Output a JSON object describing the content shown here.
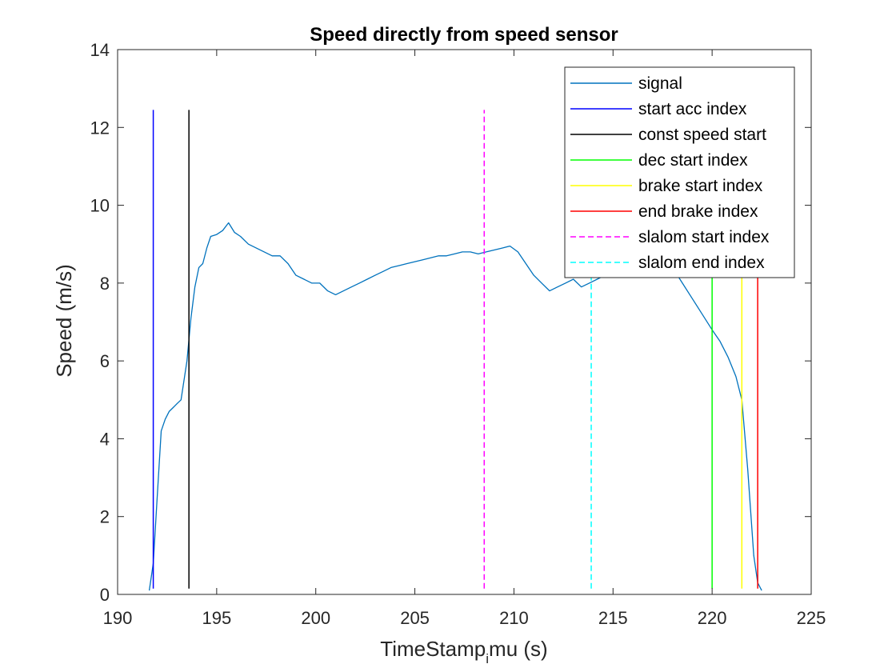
{
  "chart_data": {
    "type": "line",
    "title": "Speed directly from speed sensor",
    "xlabel_main": "TimeStamp",
    "xlabel_sub": "i",
    "xlabel_rest": "mu (s)",
    "ylabel": "Speed (m/s)",
    "xlim": [
      190,
      225
    ],
    "ylim": [
      0,
      14
    ],
    "xticks": [
      190,
      195,
      200,
      205,
      210,
      215,
      220,
      225
    ],
    "yticks": [
      0,
      2,
      4,
      6,
      8,
      10,
      12,
      14
    ],
    "grid": false,
    "legend_position": "top-right",
    "signal": {
      "name": "signal",
      "color": "#0072BD",
      "x": [
        191.6,
        191.8,
        192.0,
        192.2,
        192.4,
        192.6,
        192.8,
        193.0,
        193.2,
        193.5,
        193.7,
        193.9,
        194.1,
        194.3,
        194.5,
        194.7,
        195.0,
        195.3,
        195.6,
        195.9,
        196.2,
        196.6,
        197.0,
        197.4,
        197.8,
        198.2,
        198.6,
        199.0,
        199.4,
        199.8,
        200.2,
        200.6,
        201.0,
        201.4,
        201.8,
        202.2,
        202.6,
        203.0,
        203.4,
        203.8,
        204.2,
        204.6,
        205.0,
        205.4,
        205.8,
        206.2,
        206.6,
        207.0,
        207.4,
        207.8,
        208.2,
        208.6,
        209.0,
        209.4,
        209.8,
        210.2,
        210.6,
        211.0,
        211.4,
        211.8,
        212.2,
        212.6,
        213.0,
        213.4,
        213.8,
        214.2,
        214.6,
        215.0,
        215.5,
        216.0,
        216.5,
        217.0,
        217.5,
        218.0,
        218.5,
        219.0,
        219.5,
        220.0,
        220.4,
        220.8,
        221.2,
        221.5,
        221.8,
        222.1,
        222.3,
        222.5
      ],
      "y": [
        0.1,
        0.8,
        2.5,
        4.2,
        4.5,
        4.7,
        4.8,
        4.9,
        5.0,
        6.0,
        7.1,
        7.9,
        8.4,
        8.5,
        8.9,
        9.2,
        9.25,
        9.35,
        9.55,
        9.3,
        9.2,
        9.0,
        8.9,
        8.8,
        8.7,
        8.7,
        8.5,
        8.2,
        8.1,
        8.0,
        8.0,
        7.8,
        7.7,
        7.8,
        7.9,
        8.0,
        8.1,
        8.2,
        8.3,
        8.4,
        8.45,
        8.5,
        8.55,
        8.6,
        8.65,
        8.7,
        8.7,
        8.75,
        8.8,
        8.8,
        8.75,
        8.8,
        8.85,
        8.9,
        8.95,
        8.8,
        8.5,
        8.2,
        8.0,
        7.8,
        7.9,
        8.0,
        8.1,
        7.9,
        8.0,
        8.1,
        8.2,
        8.3,
        8.4,
        8.5,
        8.55,
        8.5,
        8.5,
        8.4,
        8.0,
        7.6,
        7.2,
        6.8,
        6.5,
        6.1,
        5.6,
        5.0,
        3.2,
        1.0,
        0.3,
        0.1
      ]
    },
    "markers": [
      {
        "name": "start acc index",
        "x": 191.8,
        "color": "#0000FF",
        "dashed": false
      },
      {
        "name": "const speed start",
        "x": 193.6,
        "color": "#000000",
        "dashed": false
      },
      {
        "name": "dec start index",
        "x": 220.0,
        "color": "#00FF00",
        "dashed": false
      },
      {
        "name": "brake start index",
        "x": 221.5,
        "color": "#FFFF00",
        "dashed": false
      },
      {
        "name": "end brake index",
        "x": 222.3,
        "color": "#FF0000",
        "dashed": false
      },
      {
        "name": "slalom start index",
        "x": 208.5,
        "color": "#FF00FF",
        "dashed": true
      },
      {
        "name": "slalom end index",
        "x": 213.9,
        "color": "#00FFFF",
        "dashed": true
      }
    ],
    "marker_y_range": [
      0.15,
      12.45
    ],
    "legend": [
      {
        "label": "signal",
        "color": "#0072BD",
        "dashed": false
      },
      {
        "label": "start acc index",
        "color": "#0000FF",
        "dashed": false
      },
      {
        "label": "const speed start",
        "color": "#000000",
        "dashed": false
      },
      {
        "label": "dec start index",
        "color": "#00FF00",
        "dashed": false
      },
      {
        "label": "brake start index",
        "color": "#FFFF00",
        "dashed": false
      },
      {
        "label": "end brake index",
        "color": "#FF0000",
        "dashed": false
      },
      {
        "label": "slalom start index",
        "color": "#FF00FF",
        "dashed": true
      },
      {
        "label": "slalom end index",
        "color": "#00FFFF",
        "dashed": true
      }
    ]
  }
}
